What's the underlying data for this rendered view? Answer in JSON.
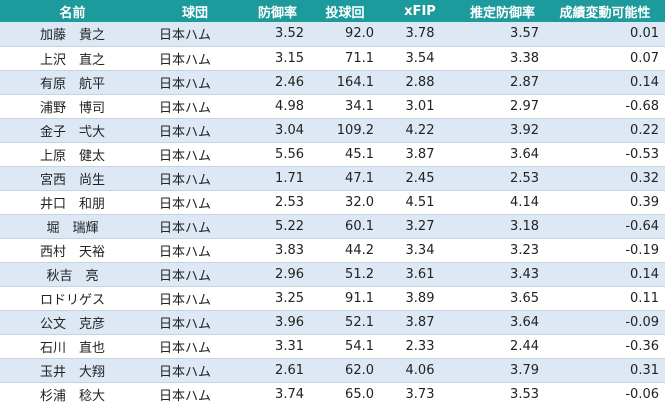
{
  "table": {
    "header": [
      "名前",
      "球団",
      "防御率",
      "投球回",
      "xFIP",
      "推定防御率",
      "成績変動可能性"
    ],
    "rows": [
      [
        "加藤　貴之",
        "日本ハム",
        "3.52",
        "92.0",
        "3.78",
        "3.57",
        "0.01"
      ],
      [
        "上沢　直之",
        "日本ハム",
        "3.15",
        "71.1",
        "3.54",
        "3.38",
        "0.07"
      ],
      [
        "有原　航平",
        "日本ハム",
        "2.46",
        "164.1",
        "2.88",
        "2.87",
        "0.14"
      ],
      [
        "浦野　博司",
        "日本ハム",
        "4.98",
        "34.1",
        "3.01",
        "2.97",
        "-0.68"
      ],
      [
        "金子　弌大",
        "日本ハム",
        "3.04",
        "109.2",
        "4.22",
        "3.92",
        "0.22"
      ],
      [
        "上原　健太",
        "日本ハム",
        "5.56",
        "45.1",
        "3.87",
        "3.64",
        "-0.53"
      ],
      [
        "宮西　尚生",
        "日本ハム",
        "1.71",
        "47.1",
        "2.45",
        "2.53",
        "0.32"
      ],
      [
        "井口　和朋",
        "日本ハム",
        "2.53",
        "32.0",
        "4.51",
        "4.14",
        "0.39"
      ],
      [
        "堀　瑞輝",
        "日本ハム",
        "5.22",
        "60.1",
        "3.27",
        "3.18",
        "-0.64"
      ],
      [
        "西村　天裕",
        "日本ハム",
        "3.83",
        "44.2",
        "3.34",
        "3.23",
        "-0.19"
      ],
      [
        "秋吉　亮",
        "日本ハム",
        "2.96",
        "51.2",
        "3.61",
        "3.43",
        "0.14"
      ],
      [
        "ロドリゲス",
        "日本ハム",
        "3.25",
        "91.1",
        "3.89",
        "3.65",
        "0.11"
      ],
      [
        "公文　克彦",
        "日本ハム",
        "3.96",
        "52.1",
        "3.87",
        "3.64",
        "-0.09"
      ],
      [
        "石川　直也",
        "日本ハム",
        "3.31",
        "54.1",
        "2.33",
        "2.44",
        "-0.36"
      ],
      [
        "玉井　大翔",
        "日本ハム",
        "2.61",
        "62.0",
        "4.06",
        "3.79",
        "0.31"
      ],
      [
        "杉浦　稔大",
        "日本ハム",
        "3.74",
        "65.0",
        "3.73",
        "3.53",
        "-0.06"
      ]
    ]
  }
}
